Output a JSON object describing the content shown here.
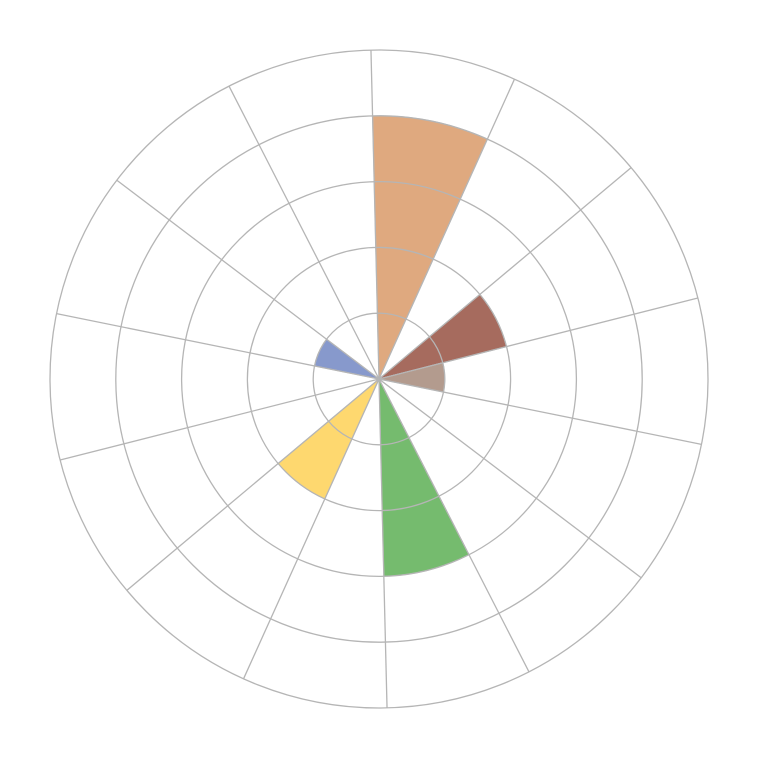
{
  "chart_data": {
    "type": "polar-area",
    "categories": [
      null,
      null,
      null,
      null,
      null,
      null,
      null,
      null,
      null,
      null,
      null,
      null,
      null,
      null
    ],
    "values": [
      4,
      0,
      2,
      1,
      0,
      0,
      3,
      0,
      2,
      0,
      0,
      1,
      0,
      0
    ],
    "colors": [
      "#dfa97f",
      null,
      "#a66b5e",
      "#b39b8e",
      null,
      null,
      "#75bb6e",
      null,
      "#fed86f",
      null,
      null,
      "#8799cc",
      null,
      null
    ],
    "rlim": [
      0,
      5
    ],
    "rticks": [
      1,
      2,
      3,
      4,
      5
    ],
    "grid": true
  }
}
